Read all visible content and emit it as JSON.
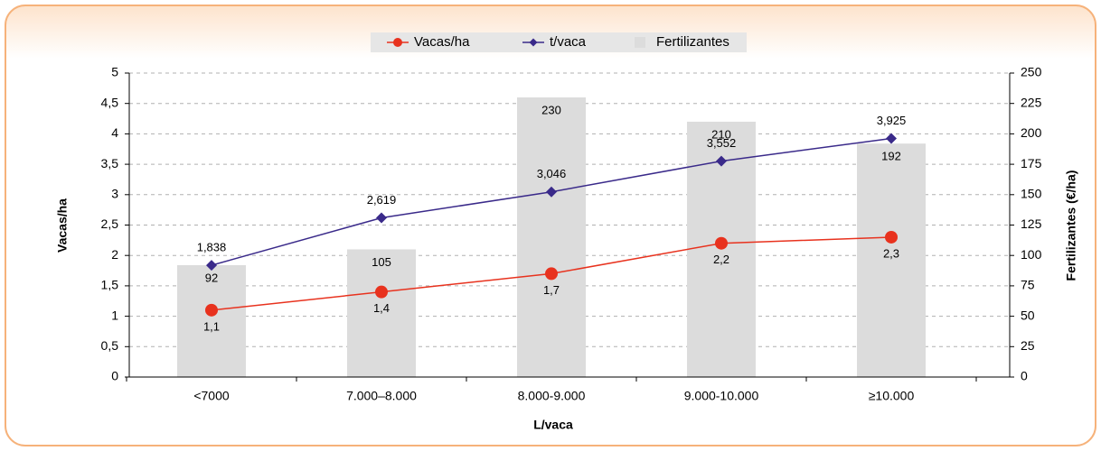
{
  "chart_data": {
    "type": "combo",
    "x_label": "L/vaca",
    "y_label": "Vacas/ha",
    "y2_label": "Fertilizantes (€/ha)",
    "categories": [
      "<7000",
      "7.000–8.000",
      "8.000-9.000",
      "9.000-10.000",
      "≥10.000"
    ],
    "series": [
      {
        "name": "Vacas/ha",
        "type": "line",
        "marker": "circle",
        "color": "#e8321e",
        "values": [
          1.1,
          1.4,
          1.7,
          2.2,
          2.3
        ],
        "value_labels": [
          "1,1",
          "1,4",
          "1,7",
          "2,2",
          "2,3"
        ]
      },
      {
        "name": "t/vaca",
        "type": "line",
        "marker": "diamond",
        "color": "#3a2a8a",
        "values": [
          1.838,
          2.619,
          3.046,
          3.552,
          3.925
        ],
        "value_labels": [
          "1,838",
          "2,619",
          "3,046",
          "3,552",
          "3,925"
        ]
      },
      {
        "name": "Fertilizantes",
        "type": "bar",
        "axis": "y2",
        "color": "#dcdcdc",
        "values": [
          92,
          105,
          230,
          210,
          192
        ]
      }
    ],
    "ylim": [
      0,
      5
    ],
    "yticks": [
      0,
      {
        "value": 0.5,
        "label": "0,5"
      },
      1,
      {
        "value": 1.5,
        "label": "1,5"
      },
      2,
      {
        "value": 2.5,
        "label": "2,5"
      },
      3,
      {
        "value": 3.5,
        "label": "3,5"
      },
      4,
      {
        "value": 4.5,
        "label": "4,5"
      },
      5
    ],
    "y2lim": [
      0,
      250
    ],
    "y2ticks": [
      0,
      25,
      50,
      75,
      100,
      125,
      150,
      175,
      200,
      225,
      250
    ],
    "grid": true,
    "legend": "top"
  }
}
